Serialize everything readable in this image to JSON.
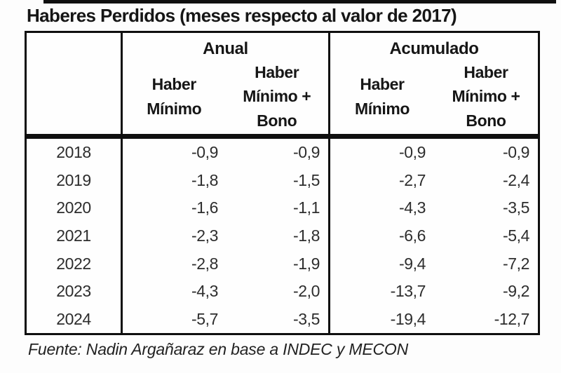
{
  "page": {
    "title": "Haberes Perdidos (meses respecto al valor de 2017)",
    "source": "Fuente: Nadin Argañaraz en base a INDEC y MECON"
  },
  "colors": {
    "text": "#1c1c1c",
    "border": "#0f0f0f",
    "background": "#fdfdfd"
  },
  "table": {
    "groups": [
      {
        "label": "Anual",
        "subheaders": [
          [
            "Haber",
            "Mínimo"
          ],
          [
            "Haber",
            "Mínimo +",
            "Bono"
          ]
        ]
      },
      {
        "label": "Acumulado",
        "subheaders": [
          [
            "Haber",
            "Mínimo"
          ],
          [
            "Haber",
            "Mínimo +",
            "Bono"
          ]
        ]
      }
    ],
    "rows": [
      {
        "year": "2018",
        "values": [
          "-0,9",
          "-0,9",
          "-0,9",
          "-0,9"
        ]
      },
      {
        "year": "2019",
        "values": [
          "-1,8",
          "-1,5",
          "-2,7",
          "-2,4"
        ]
      },
      {
        "year": "2020",
        "values": [
          "-1,6",
          "-1,1",
          "-4,3",
          "-3,5"
        ]
      },
      {
        "year": "2021",
        "values": [
          "-2,3",
          "-1,8",
          "-6,6",
          "-5,4"
        ]
      },
      {
        "year": "2022",
        "values": [
          "-2,8",
          "-1,9",
          "-9,4",
          "-7,2"
        ]
      },
      {
        "year": "2023",
        "values": [
          "-4,3",
          "-2,0",
          "-13,7",
          "-9,2"
        ]
      },
      {
        "year": "2024",
        "values": [
          "-5,7",
          "-3,5",
          "-19,4",
          "-12,7"
        ]
      }
    ]
  },
  "chart_data": {
    "type": "table",
    "title": "Haberes Perdidos (meses respecto al valor de 2017)",
    "units": "meses",
    "column_groups": [
      "Anual",
      "Acumulado"
    ],
    "columns": [
      "Anual - Haber Mínimo",
      "Anual - Haber Mínimo + Bono",
      "Acumulado - Haber Mínimo",
      "Acumulado - Haber Mínimo + Bono"
    ],
    "years": [
      2018,
      2019,
      2020,
      2021,
      2022,
      2023,
      2024
    ],
    "values": [
      [
        -0.9,
        -0.9,
        -0.9,
        -0.9
      ],
      [
        -1.8,
        -1.5,
        -2.7,
        -2.4
      ],
      [
        -1.6,
        -1.1,
        -4.3,
        -3.5
      ],
      [
        -2.3,
        -1.8,
        -6.6,
        -5.4
      ],
      [
        -2.8,
        -1.9,
        -9.4,
        -7.2
      ],
      [
        -4.3,
        -2.0,
        -13.7,
        -9.2
      ],
      [
        -5.7,
        -3.5,
        -19.4,
        -12.7
      ]
    ],
    "source": "Fuente: Nadin Argañaraz en base a INDEC y MECON"
  }
}
